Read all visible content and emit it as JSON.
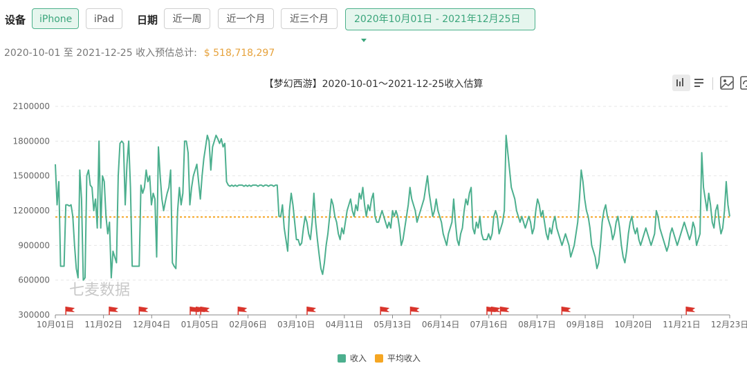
{
  "filters": {
    "device_label": "设备",
    "devices": [
      "iPhone",
      "iPad"
    ],
    "active_device": "iPhone",
    "date_label": "日期",
    "presets": [
      "近一周",
      "近一个月",
      "近三个月"
    ],
    "date_range": "2020年10月01日 - 2021年12月25日"
  },
  "summary": {
    "text": "2020-10-01 至 2021-12-25 收入预估总计:",
    "amount": "$ 518,718,297"
  },
  "toolbox": {
    "icons": [
      "bar-chart-icon",
      "data-view-icon",
      "save-image-icon",
      "restore-icon"
    ]
  },
  "watermark": "七麦数据",
  "colors": {
    "income": "#4caf8e",
    "average": "#f5a623",
    "accent": "#3aa57b",
    "flag": "#d9342b"
  },
  "chart_data": {
    "type": "line",
    "title": "【梦幻西游】2020-10-01～2021-12-25收入估算",
    "xlabel": "",
    "ylabel": "",
    "ylim": [
      300000,
      2100000
    ],
    "yticks": [
      300000,
      600000,
      900000,
      1200000,
      1500000,
      1800000,
      2100000
    ],
    "xticks": [
      "10月01日",
      "11月02日",
      "12月04日",
      "01月05日",
      "02月06日",
      "03月10日",
      "04月11日",
      "05月13日",
      "06月14日",
      "07月16日",
      "08月17日",
      "09月18日",
      "10月20日",
      "11月21日",
      "12月23日"
    ],
    "grid": true,
    "legend_position": "bottom-center",
    "series": [
      {
        "name": "收入",
        "x_start": "2020-10-01",
        "x_end": "2021-12-25",
        "values": [
          1600000,
          1250000,
          1450000,
          720000,
          720000,
          720000,
          1250000,
          1250000,
          1240000,
          1250000,
          1150000,
          900000,
          700000,
          620000,
          1550000,
          1300000,
          600000,
          620000,
          1500000,
          1550000,
          1420000,
          1400000,
          1200000,
          1300000,
          1050000,
          1800000,
          1050000,
          1500000,
          1450000,
          1150000,
          1000000,
          1100000,
          620000,
          850000,
          800000,
          750000,
          1500000,
          1780000,
          1800000,
          1780000,
          1250000,
          1600000,
          1800000,
          1400000,
          720000,
          720000,
          720000,
          720000,
          720000,
          1420000,
          1350000,
          1400000,
          1550000,
          1450000,
          1500000,
          1250000,
          1350000,
          1300000,
          800000,
          1750000,
          1500000,
          1300000,
          1200000,
          1280000,
          1350000,
          1400000,
          1550000,
          750000,
          720000,
          700000,
          1200000,
          1400000,
          1250000,
          1350000,
          1800000,
          1800000,
          1700000,
          1250000,
          1400000,
          1500000,
          1550000,
          1600000,
          1450000,
          1300000,
          1500000,
          1650000,
          1750000,
          1850000,
          1800000,
          1550000,
          1750000,
          1800000,
          1850000,
          1820000,
          1780000,
          1820000,
          1750000,
          1780000,
          1450000,
          1420000,
          1410000,
          1420000,
          1410000,
          1420000,
          1410000,
          1420000,
          1420000,
          1420000,
          1410000,
          1420000,
          1410000,
          1420000,
          1410000,
          1420000,
          1420000,
          1420000,
          1410000,
          1420000,
          1420000,
          1410000,
          1420000,
          1420000,
          1410000,
          1420000,
          1420000,
          1410000,
          1420000,
          1420000,
          1150000,
          1150000,
          1250000,
          1050000,
          950000,
          850000,
          1200000,
          1350000,
          1250000,
          1100000,
          950000,
          950000,
          900000,
          920000,
          1050000,
          1150000,
          1100000,
          1000000,
          950000,
          1100000,
          1350000,
          1100000,
          950000,
          820000,
          700000,
          650000,
          750000,
          900000,
          1000000,
          1150000,
          1300000,
          1250000,
          1150000,
          1100000,
          1000000,
          950000,
          1050000,
          1000000,
          1100000,
          1200000,
          1250000,
          1300000,
          1200000,
          1150000,
          1250000,
          1200000,
          1350000,
          1300000,
          1400000,
          1250000,
          1150000,
          1250000,
          1200000,
          1300000,
          1350000,
          1150000,
          1100000,
          1100000,
          1150000,
          1200000,
          1150000,
          1100000,
          1050000,
          1100000,
          1050000,
          1200000,
          1150000,
          1200000,
          1150000,
          1050000,
          900000,
          950000,
          1050000,
          1150000,
          1250000,
          1400000,
          1300000,
          1250000,
          1200000,
          1100000,
          1150000,
          1200000,
          1250000,
          1300000,
          1400000,
          1500000,
          1350000,
          1250000,
          1150000,
          1200000,
          1300000,
          1200000,
          1150000,
          1100000,
          1000000,
          950000,
          900000,
          1000000,
          1050000,
          1100000,
          1300000,
          1100000,
          950000,
          900000,
          1000000,
          1050000,
          1200000,
          1300000,
          1250000,
          1350000,
          1400000,
          1050000,
          1000000,
          1100000,
          1050000,
          1150000,
          1000000,
          950000,
          950000,
          950000,
          1000000,
          950000,
          1000000,
          1150000,
          1200000,
          1150000,
          1000000,
          1050000,
          1100000,
          1200000,
          1850000,
          1700000,
          1550000,
          1400000,
          1350000,
          1300000,
          1200000,
          1150000,
          1100000,
          1150000,
          1100000,
          1050000,
          1100000,
          1150000,
          1100000,
          1000000,
          1050000,
          1200000,
          1300000,
          1250000,
          1150000,
          1200000,
          1100000,
          1000000,
          950000,
          1050000,
          1000000,
          1100000,
          1150000,
          1050000,
          1000000,
          950000,
          900000,
          950000,
          1000000,
          950000,
          900000,
          800000,
          850000,
          900000,
          1000000,
          1100000,
          1300000,
          1550000,
          1450000,
          1300000,
          1200000,
          1150000,
          1050000,
          900000,
          850000,
          800000,
          700000,
          750000,
          900000,
          1100000,
          1200000,
          1250000,
          1150000,
          1100000,
          1050000,
          950000,
          1000000,
          1100000,
          1150000,
          1050000,
          900000,
          800000,
          750000,
          850000,
          1000000,
          1100000,
          1150000,
          1050000,
          1000000,
          1050000,
          950000,
          900000,
          950000,
          1000000,
          1050000,
          1000000,
          950000,
          900000,
          950000,
          1000000,
          1200000,
          1150000,
          1050000,
          1000000,
          950000,
          900000,
          850000,
          900000,
          1000000,
          1050000,
          1000000,
          950000,
          900000,
          950000,
          1000000,
          1050000,
          1100000,
          1050000,
          1000000,
          950000,
          1000000,
          1100000,
          1050000,
          900000,
          950000,
          1000000,
          1700000,
          1400000,
          1300000,
          1200000,
          1350000,
          1250000,
          1100000,
          1050000,
          1200000,
          1250000,
          1100000,
          1000000,
          1050000,
          1200000,
          1450000,
          1250000,
          1150000
        ]
      },
      {
        "name": "平均收入",
        "value": 1145000
      }
    ],
    "event_flags": [
      "2020-10-08",
      "2020-11-06",
      "2020-11-26",
      "2020-12-30",
      "2021-01-03",
      "2021-01-06",
      "2021-01-31",
      "2021-03-18",
      "2021-05-06",
      "2021-05-26",
      "2021-07-16",
      "2021-07-19",
      "2021-07-25",
      "2021-09-04",
      "2021-11-26"
    ]
  },
  "legend": [
    "收入",
    "平均收入"
  ]
}
